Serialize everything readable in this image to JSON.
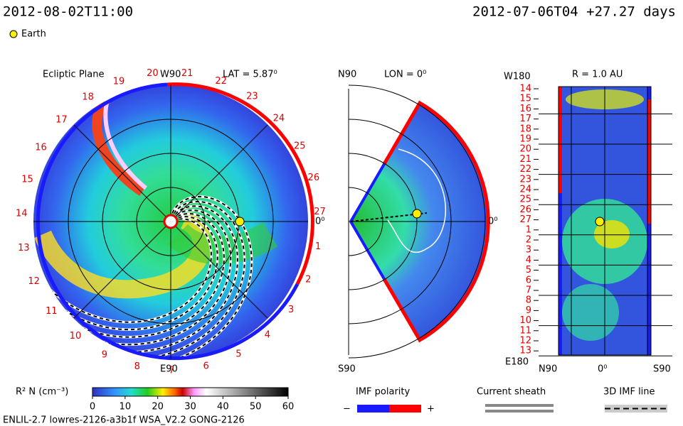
{
  "header": {
    "time": "2012-08-02T11:00",
    "run": "2012-07-06T04 +27.27 days",
    "earth": "Earth"
  },
  "ecliptic": {
    "title": "Ecliptic Plane",
    "top": "W90",
    "lat": "LAT = 5.87⁰",
    "bottom": "E90",
    "right": "0⁰",
    "rotation_labels": [
      20,
      21,
      22,
      23,
      24,
      25,
      26,
      27,
      1,
      2,
      3,
      4,
      5,
      6,
      7,
      8,
      9,
      10,
      11,
      12,
      13,
      14,
      15,
      16,
      17,
      18,
      19
    ]
  },
  "meridional": {
    "top": "N90",
    "lon": "LON = 0⁰",
    "bottom": "S90",
    "right": "0⁰"
  },
  "sphere": {
    "top": "W180",
    "radius": "R = 1.0 AU",
    "bottom": "E180",
    "left": "N90",
    "middle": "0⁰",
    "right": "S90",
    "labels": [
      14,
      15,
      16,
      17,
      18,
      19,
      20,
      21,
      22,
      23,
      24,
      25,
      26,
      27,
      1,
      2,
      3,
      4,
      5,
      6,
      7,
      8,
      9,
      10,
      11,
      12,
      13
    ]
  },
  "colorbar": {
    "label": "R² N (cm⁻³)",
    "range": [
      0,
      60
    ],
    "ticks": [
      0,
      10,
      20,
      30,
      40,
      50,
      60
    ]
  },
  "legend": {
    "polarity": "IMF polarity",
    "minus": "−",
    "plus": "+",
    "sheath": "Current sheath",
    "field_line": "3D IMF line"
  },
  "footer": "ENLIL-2.7 lowres-2126-a3b1f WSA_V2.2 GONG-2126"
}
